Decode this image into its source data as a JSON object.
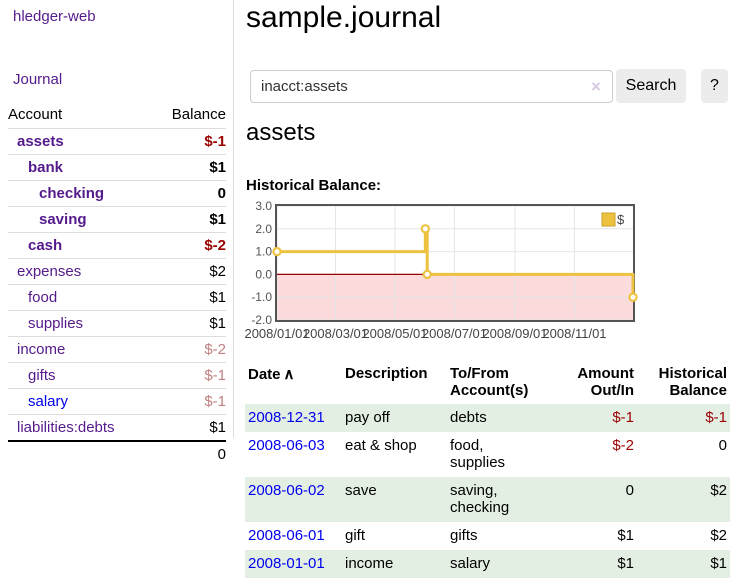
{
  "brand": "hledger-web",
  "nav": {
    "journal_label": "Journal"
  },
  "sidebar": {
    "columns": {
      "account": "Account",
      "balance": "Balance"
    },
    "accounts": [
      {
        "name": "assets",
        "indent": 1,
        "bold": true,
        "balance": "$-1"
      },
      {
        "name": "bank",
        "indent": 2,
        "bold": true,
        "balance": "$1"
      },
      {
        "name": "checking",
        "indent": 3,
        "bold": true,
        "balance": "0"
      },
      {
        "name": "saving",
        "indent": 3,
        "bold": true,
        "balance": "$1"
      },
      {
        "name": "cash",
        "indent": 2,
        "bold": true,
        "balance": "$-2"
      },
      {
        "name": "expenses",
        "indent": 1,
        "bold": false,
        "balance": "$2"
      },
      {
        "name": "food",
        "indent": 2,
        "bold": false,
        "balance": "$1"
      },
      {
        "name": "supplies",
        "indent": 2,
        "bold": false,
        "balance": "$1"
      },
      {
        "name": "income",
        "indent": 1,
        "bold": false,
        "balance": "$-2"
      },
      {
        "name": "gifts",
        "indent": 2,
        "bold": false,
        "balance": "$-1"
      },
      {
        "name": "salary",
        "indent": 2,
        "bold": false,
        "balance": "$-1",
        "link_color": "blue"
      },
      {
        "name": "liabilities:debts",
        "indent": 1,
        "bold": false,
        "balance": "$1"
      }
    ],
    "total": "0"
  },
  "header": {
    "title": "sample.journal"
  },
  "search": {
    "value": "inacct:assets",
    "clear_icon": "×",
    "search_button": "Search",
    "help_button": "?"
  },
  "main": {
    "account_heading": "assets",
    "chart_heading": "Historical Balance:"
  },
  "chart_data": {
    "type": "line",
    "step": true,
    "title": "Historical Balance",
    "xrange": [
      "2008-01-01",
      "2008-12-31"
    ],
    "ylim": [
      -2,
      3
    ],
    "yticks": [
      3.0,
      2.0,
      1.0,
      0.0,
      -1.0,
      -2.0
    ],
    "xticks": [
      "2008/01/01",
      "2008/03/01",
      "2008/05/01",
      "2008/07/01",
      "2008/09/01",
      "2008/11/01"
    ],
    "series": [
      {
        "name": "$",
        "color": "#edc240",
        "points": [
          [
            "2008-01-01",
            1
          ],
          [
            "2008-06-01",
            2
          ],
          [
            "2008-06-03",
            0
          ],
          [
            "2008-12-31",
            -1
          ]
        ]
      }
    ],
    "legend_position": "top-right",
    "grid": true,
    "negative_region_fill": "#fbdbdb",
    "zero_line_color": "#990000",
    "border_color": "#545454",
    "grid_color": "#e6e6e6",
    "tick_color": "#545454"
  },
  "register": {
    "columns": [
      "Date",
      "Description",
      "To/From Account(s)",
      "Amount Out/In",
      "Historical Balance"
    ],
    "sort_icon": "∧",
    "rows": [
      {
        "date": "2008-12-31",
        "description": "pay off",
        "accounts": "debts",
        "amount": "$-1",
        "balance": "$-1"
      },
      {
        "date": "2008-06-03",
        "description": "eat & shop",
        "accounts": "food, supplies",
        "amount": "$-2",
        "balance": "0"
      },
      {
        "date": "2008-06-02",
        "description": "save",
        "accounts": "saving, checking",
        "amount": "0",
        "balance": "$2"
      },
      {
        "date": "2008-06-01",
        "description": "gift",
        "accounts": "gifts",
        "amount": "$1",
        "balance": "$2"
      },
      {
        "date": "2008-01-01",
        "description": "income",
        "accounts": "salary",
        "amount": "$1",
        "balance": "$1"
      }
    ]
  },
  "colors": {
    "link_purple": "#551a8b",
    "link_blue": "#0000ee",
    "negative_strong": "#990000",
    "negative_soft": "#c08080",
    "row_stripe": "#e4efe4",
    "chart_series": "#edc240"
  }
}
